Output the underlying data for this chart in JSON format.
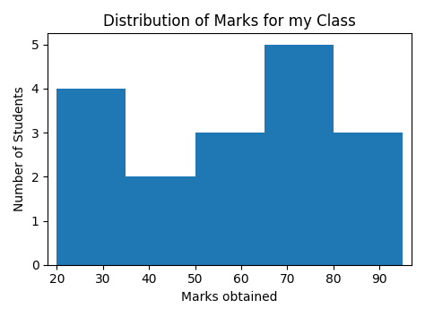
{
  "title": "Distribution of Marks for my Class",
  "xlabel": "Marks obtained",
  "ylabel": "Number of Students",
  "bar_color": "#1f77b4",
  "bin_edges": [
    20,
    35,
    50,
    65,
    80,
    95
  ],
  "counts": [
    4,
    2,
    3,
    5,
    3
  ],
  "xlim": [
    18,
    97
  ],
  "ylim": [
    0,
    5.25
  ],
  "xticks": [
    20,
    30,
    40,
    50,
    60,
    70,
    80,
    90
  ],
  "yticks": [
    0,
    1,
    2,
    3,
    4,
    5
  ],
  "title_fontsize": 12,
  "label_fontsize": 10
}
